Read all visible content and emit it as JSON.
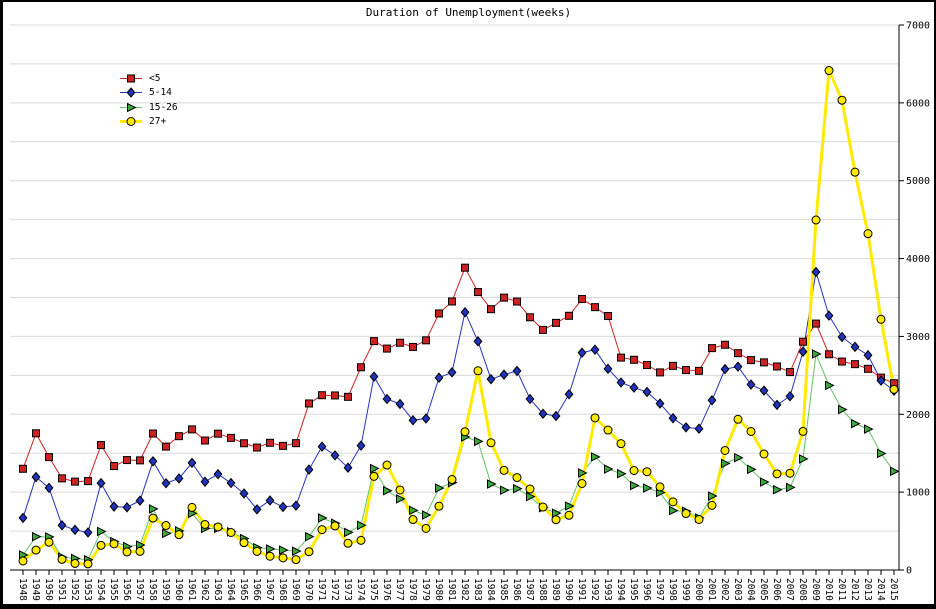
{
  "window": {
    "title": "Duration of Unemployment(weeks)"
  },
  "chart_data": {
    "type": "line",
    "title": "Duration of Unemployment(weeks)",
    "xlabel": "",
    "ylabel": "",
    "ylim": [
      0,
      7000
    ],
    "y_ticks": [
      0,
      1000,
      2000,
      3000,
      4000,
      5000,
      6000,
      7000
    ],
    "grid": true,
    "grid_step": 500,
    "grid_color": "#d9d9d9",
    "axis_color": "#000000",
    "background": "#ffffff",
    "y_axis_side": "right",
    "x_tick_rotation": 90,
    "legend_position": "upper-left",
    "categories": [
      "1948",
      "1949",
      "1950",
      "1951",
      "1952",
      "1953",
      "1954",
      "1955",
      "1956",
      "1957",
      "1958",
      "1959",
      "1960",
      "1961",
      "1962",
      "1963",
      "1964",
      "1965",
      "1966",
      "1967",
      "1968",
      "1969",
      "1970",
      "1971",
      "1972",
      "1973",
      "1974",
      "1975",
      "1976",
      "1977",
      "1978",
      "1979",
      "1980",
      "1981",
      "1982",
      "1983",
      "1984",
      "1985",
      "1986",
      "1987",
      "1988",
      "1989",
      "1990",
      "1991",
      "1992",
      "1993",
      "1994",
      "1995",
      "1996",
      "1997",
      "1998",
      "1999",
      "2000",
      "2001",
      "2002",
      "2003",
      "2004",
      "2005",
      "2006",
      "2007",
      "2008",
      "2009",
      "2010",
      "2011",
      "2012",
      "2013",
      "2014",
      "2015"
    ],
    "series": [
      {
        "key": "lt5",
        "name": "<5",
        "marker": "square",
        "color": "#cc2222",
        "line_color": "#cc2222",
        "line_width": 1,
        "values": [
          1300,
          1756,
          1450,
          1177,
          1135,
          1142,
          1605,
          1335,
          1412,
          1408,
          1753,
          1585,
          1719,
          1806,
          1663,
          1751,
          1697,
          1628,
          1573,
          1634,
          1594,
          1629,
          2139,
          2245,
          2242,
          2224,
          2604,
          2940,
          2844,
          2919,
          2865,
          2950,
          3295,
          3449,
          3883,
          3570,
          3350,
          3498,
          3448,
          3246,
          3084,
          3174,
          3265,
          3480,
          3376,
          3262,
          2728,
          2700,
          2633,
          2538,
          2622,
          2568,
          2558,
          2850,
          2893,
          2785,
          2696,
          2667,
          2614,
          2542,
          2932,
          3165,
          2771,
          2677,
          2644,
          2584,
          2471,
          2399
        ]
      },
      {
        "key": "5to14",
        "name": "5-14",
        "marker": "diamond",
        "color": "#2233bb",
        "line_color": "#2233bb",
        "line_width": 1,
        "values": [
          669,
          1194,
          1055,
          574,
          516,
          482,
          1116,
          815,
          805,
          891,
          1396,
          1114,
          1176,
          1376,
          1134,
          1231,
          1117,
          983,
          779,
          893,
          810,
          827,
          1290,
          1585,
          1472,
          1314,
          1597,
          2484,
          2196,
          2132,
          1923,
          1946,
          2470,
          2539,
          3311,
          2937,
          2451,
          2509,
          2557,
          2196,
          2007,
          1978,
          2257,
          2791,
          2830,
          2584,
          2408,
          2342,
          2287,
          2138,
          1950,
          1832,
          1815,
          2180,
          2580,
          2612,
          2382,
          2304,
          2121,
          2232,
          2804,
          3828,
          3267,
          2993,
          2866,
          2759,
          2432,
          2302
        ]
      },
      {
        "key": "15to26",
        "name": "15-26",
        "marker": "triangle-right",
        "color": "#3da row83d",
        "line_color": "#63c363",
        "line_width": 1,
        "values": [
          193,
          428,
          425,
          166,
          148,
          132,
          495,
          366,
          301,
          321,
          785,
          469,
          503,
          728,
          534,
          535,
          491,
          404,
          287,
          271,
          256,
          242,
          428,
          668,
          601,
          483,
          574,
          1303,
          1018,
          913,
          766,
          706,
          1052,
          1122,
          1708,
          1652,
          1104,
          1025,
          1045,
          943,
          801,
          730,
          822,
          1246,
          1453,
          1297,
          1237,
          1085,
          1053,
          995,
          763,
          755,
          669,
          950,
          1369,
          1442,
          1293,
          1130,
          1031,
          1061,
          1427,
          2775,
          2371,
          2061,
          1880,
          1810,
          1497,
          1267
        ]
      },
      {
        "key": "27plus",
        "name": "27+",
        "marker": "circle",
        "color": "#ffea00",
        "line_color": "#ffea00",
        "line_width": 3,
        "values": [
          116,
          256,
          357,
          137,
          84,
          78,
          317,
          336,
          232,
          239,
          667,
          571,
          454,
          804,
          585,
          553,
          482,
          351,
          239,
          177,
          156,
          133,
          235,
          519,
          566,
          343,
          381,
          1203,
          1348,
          1028,
          648,
          535,
          820,
          1162,
          1776,
          2559,
          1634,
          1280,
          1187,
          1040,
          809,
          646,
          703,
          1111,
          1954,
          1798,
          1623,
          1278,
          1262,
          1067,
          875,
          725,
          649,
          830,
          1535,
          1936,
          1779,
          1490,
          1235,
          1243,
          1780,
          4496,
          6415,
          6034,
          5110,
          4320,
          3220,
          2320
        ]
      }
    ]
  }
}
